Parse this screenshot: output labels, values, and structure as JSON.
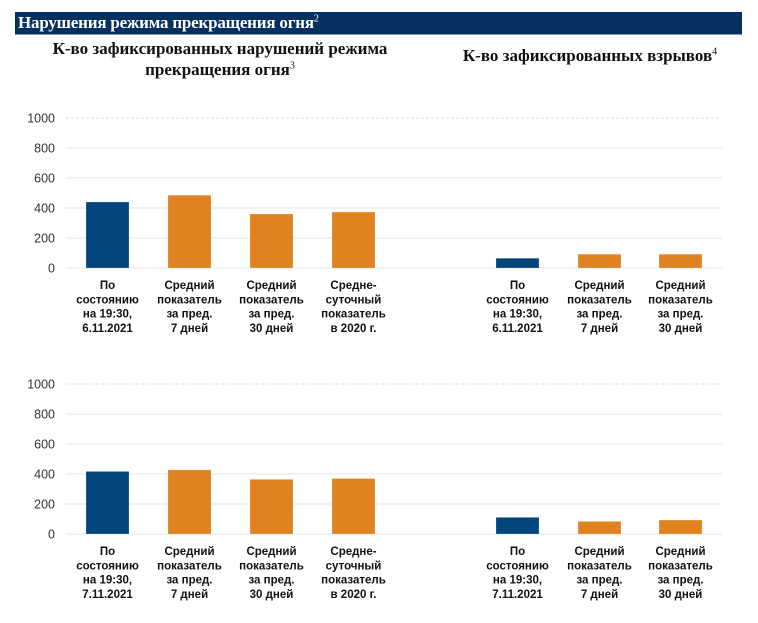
{
  "header": {
    "title": "Нарушения режима прекращения огня",
    "footnote": "2"
  },
  "sections": {
    "left_title": "К-во зафиксированных нарушений режима прекращения огня",
    "left_title_line1": "К-во зафиксированных нарушений режима",
    "left_title_line2": "прекращения огня",
    "left_footnote": "3",
    "right_title": "К-во зафиксированных взрывов",
    "right_footnote": "4"
  },
  "colors": {
    "current": "#01457c",
    "average": "#e0821f",
    "header_bg": "#06305f",
    "grid": "#e6e6e6"
  },
  "chart_data": [
    {
      "type": "bar",
      "title": "К-во зафиксированных нарушений режима прекращения огня (6.11.2021)",
      "ylim": [
        0,
        1000
      ],
      "yticks": [
        "0",
        "200",
        "400",
        "600",
        "800",
        "1000"
      ],
      "grid": true,
      "categories": [
        [
          "По",
          "состоянию",
          "на 19:30,",
          "6.11.2021"
        ],
        [
          "Средний",
          "показатель",
          "за пред.",
          "7 дней"
        ],
        [
          "Средний",
          "показатель",
          "за пред.",
          "30 дней"
        ],
        [
          "Средне-",
          "суточный",
          "показатель",
          "в 2020 г."
        ]
      ],
      "values": [
        440,
        485,
        360,
        373
      ],
      "bar_colors": [
        "current",
        "average",
        "average",
        "average"
      ]
    },
    {
      "type": "bar",
      "title": "К-во зафиксированных взрывов (6.11.2021)",
      "ylim": [
        0,
        1000
      ],
      "grid": true,
      "categories": [
        [
          "По",
          "состоянию",
          "на 19:30,",
          "6.11.2021"
        ],
        [
          "Средний",
          "показатель",
          "за пред.",
          "7 дней"
        ],
        [
          "Средний",
          "показатель",
          "за пред.",
          "30 дней"
        ]
      ],
      "values": [
        65,
        92,
        92
      ],
      "bar_colors": [
        "current",
        "average",
        "average"
      ]
    },
    {
      "type": "bar",
      "title": "К-во зафиксированных нарушений режима прекращения огня (7.11.2021)",
      "ylim": [
        0,
        1000
      ],
      "yticks": [
        "0",
        "200",
        "400",
        "600",
        "800",
        "1000"
      ],
      "grid": true,
      "categories": [
        [
          "По",
          "состоянию",
          "на 19:30,",
          "7.11.2021"
        ],
        [
          "Средний",
          "показатель",
          "за пред.",
          "7 дней"
        ],
        [
          "Средний",
          "показатель",
          "за пред.",
          "30 дней"
        ],
        [
          "Средне-",
          "суточный",
          "показатель",
          "в 2020 г."
        ]
      ],
      "values": [
        417,
        427,
        364,
        370
      ],
      "bar_colors": [
        "current",
        "average",
        "average",
        "average"
      ]
    },
    {
      "type": "bar",
      "title": "К-во зафиксированных взрывов (7.11.2021)",
      "ylim": [
        0,
        1000
      ],
      "grid": true,
      "categories": [
        [
          "По",
          "состоянию",
          "на 19:30,",
          "7.11.2021"
        ],
        [
          "Средний",
          "показатель",
          "за пред.",
          "7 дней"
        ],
        [
          "Средний",
          "показатель",
          "за пред.",
          "30 дней"
        ]
      ],
      "values": [
        111,
        84,
        93
      ],
      "bar_colors": [
        "current",
        "average",
        "average"
      ]
    }
  ]
}
